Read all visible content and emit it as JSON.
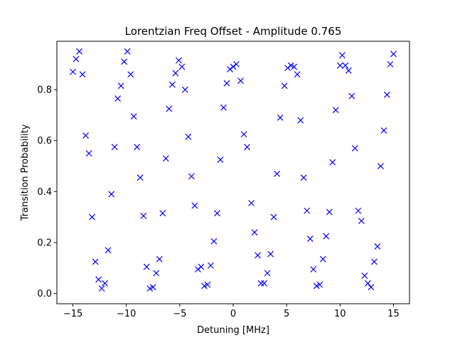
{
  "chart_data": {
    "type": "scatter",
    "title": "Lorentzian Freq Offset - Amplitude 0.765",
    "xlabel": "Detuning [MHz]",
    "ylabel": "Transition Probability",
    "xlim": [
      -16.5,
      16.5
    ],
    "ylim": [
      -0.04,
      0.99
    ],
    "xticks": [
      -15,
      -10,
      -5,
      0,
      5,
      10,
      15
    ],
    "xtick_labels": [
      "−15",
      "−10",
      "−5",
      "0",
      "5",
      "10",
      "15"
    ],
    "yticks": [
      0.0,
      0.2,
      0.4,
      0.6,
      0.8
    ],
    "ytick_labels": [
      "0.0",
      "0.2",
      "0.4",
      "0.6",
      "0.8"
    ],
    "grid": false,
    "marker": "x",
    "marker_color": "#0000ff",
    "series": [
      {
        "points": [
          [
            -15.0,
            0.87
          ],
          [
            -14.7,
            0.92
          ],
          [
            -14.4,
            0.95
          ],
          [
            -14.1,
            0.86
          ],
          [
            -13.8,
            0.62
          ],
          [
            -13.5,
            0.55
          ],
          [
            -13.2,
            0.3
          ],
          [
            -12.9,
            0.125
          ],
          [
            -12.6,
            0.055
          ],
          [
            -12.3,
            0.02
          ],
          [
            -12.0,
            0.04
          ],
          [
            -11.7,
            0.17
          ],
          [
            -11.4,
            0.39
          ],
          [
            -11.1,
            0.575
          ],
          [
            -10.8,
            0.765
          ],
          [
            -10.5,
            0.815
          ],
          [
            -10.2,
            0.91
          ],
          [
            -9.9,
            0.95
          ],
          [
            -9.6,
            0.86
          ],
          [
            -9.3,
            0.695
          ],
          [
            -9.0,
            0.575
          ],
          [
            -8.7,
            0.455
          ],
          [
            -8.4,
            0.305
          ],
          [
            -8.1,
            0.105
          ],
          [
            -7.8,
            0.02
          ],
          [
            -7.5,
            0.025
          ],
          [
            -7.2,
            0.08
          ],
          [
            -6.9,
            0.135
          ],
          [
            -6.6,
            0.315
          ],
          [
            -6.3,
            0.53
          ],
          [
            -6.0,
            0.725
          ],
          [
            -5.7,
            0.82
          ],
          [
            -5.4,
            0.865
          ],
          [
            -5.1,
            0.915
          ],
          [
            -4.8,
            0.89
          ],
          [
            -4.5,
            0.8
          ],
          [
            -4.2,
            0.615
          ],
          [
            -3.9,
            0.46
          ],
          [
            -3.6,
            0.345
          ],
          [
            -3.3,
            0.095
          ],
          [
            -3.0,
            0.105
          ],
          [
            -2.7,
            0.03
          ],
          [
            -2.4,
            0.035
          ],
          [
            -2.1,
            0.11
          ],
          [
            -1.8,
            0.205
          ],
          [
            -1.5,
            0.315
          ],
          [
            -1.2,
            0.525
          ],
          [
            -0.9,
            0.73
          ],
          [
            -0.6,
            0.825
          ],
          [
            -0.3,
            0.88
          ],
          [
            0.0,
            0.89
          ],
          [
            0.3,
            0.9
          ],
          [
            0.7,
            0.835
          ],
          [
            1.0,
            0.625
          ],
          [
            1.3,
            0.575
          ],
          [
            1.7,
            0.355
          ],
          [
            2.0,
            0.24
          ],
          [
            2.3,
            0.15
          ],
          [
            2.6,
            0.04
          ],
          [
            2.9,
            0.04
          ],
          [
            3.2,
            0.08
          ],
          [
            3.5,
            0.155
          ],
          [
            3.8,
            0.3
          ],
          [
            4.1,
            0.47
          ],
          [
            4.4,
            0.69
          ],
          [
            4.8,
            0.815
          ],
          [
            5.1,
            0.885
          ],
          [
            5.4,
            0.895
          ],
          [
            5.7,
            0.89
          ],
          [
            6.0,
            0.86
          ],
          [
            6.3,
            0.68
          ],
          [
            6.6,
            0.455
          ],
          [
            6.9,
            0.325
          ],
          [
            7.2,
            0.215
          ],
          [
            7.5,
            0.095
          ],
          [
            7.8,
            0.03
          ],
          [
            8.1,
            0.035
          ],
          [
            8.4,
            0.135
          ],
          [
            8.7,
            0.225
          ],
          [
            9.0,
            0.32
          ],
          [
            9.3,
            0.515
          ],
          [
            9.6,
            0.72
          ],
          [
            10.0,
            0.895
          ],
          [
            10.2,
            0.935
          ],
          [
            10.5,
            0.895
          ],
          [
            10.8,
            0.875
          ],
          [
            11.1,
            0.775
          ],
          [
            11.4,
            0.57
          ],
          [
            11.7,
            0.325
          ],
          [
            12.0,
            0.285
          ],
          [
            12.3,
            0.07
          ],
          [
            12.6,
            0.04
          ],
          [
            12.9,
            0.025
          ],
          [
            13.2,
            0.125
          ],
          [
            13.5,
            0.185
          ],
          [
            13.8,
            0.5
          ],
          [
            14.1,
            0.64
          ],
          [
            14.4,
            0.78
          ],
          [
            14.7,
            0.9
          ],
          [
            15.0,
            0.94
          ]
        ]
      }
    ]
  }
}
